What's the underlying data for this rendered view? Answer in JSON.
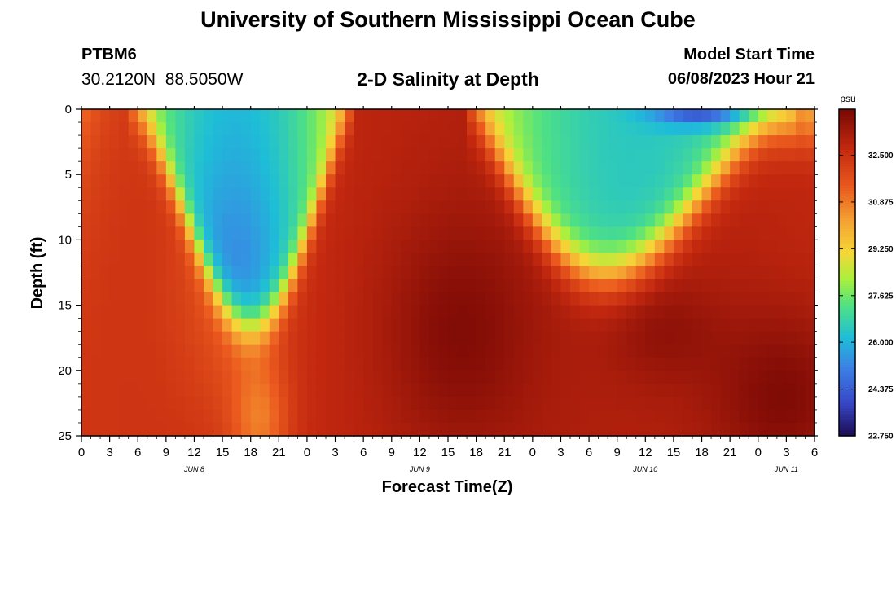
{
  "header": {
    "title": "University of Southern Mississippi Ocean Cube",
    "station_id": "PTBM6",
    "coordinates": "30.2120N  88.5050W",
    "model_start_label": "Model Start Time",
    "model_start_value": "06/08/2023 Hour 21"
  },
  "footer": {
    "title": "University of Southern Mississippi Ocean Cube"
  },
  "chart_data": {
    "type": "heatmap",
    "title": "2-D Salinity at Depth",
    "xlabel": "Forecast Time(Z)",
    "ylabel": "Depth (ft)",
    "colorbar_label": "psu",
    "x_range_hours": [
      0,
      78
    ],
    "y_range_ft": [
      0,
      25
    ],
    "x_tick_labels": [
      "0",
      "3",
      "6",
      "9",
      "12",
      "15",
      "18",
      "21",
      "0",
      "3",
      "6",
      "9",
      "12",
      "15",
      "18",
      "21",
      "0",
      "3",
      "6",
      "9",
      "12",
      "15",
      "18",
      "21",
      "0",
      "3",
      "6"
    ],
    "y_ticks": [
      0,
      5,
      10,
      15,
      20,
      25
    ],
    "date_labels": [
      {
        "text": "JUN 8",
        "hour": 12
      },
      {
        "text": "JUN 9",
        "hour": 36
      },
      {
        "text": "JUN 10",
        "hour": 60
      },
      {
        "text": "JUN 11",
        "hour": 75
      }
    ],
    "colorbar_ticks": [
      "32.500",
      "30.875",
      "29.250",
      "27.625",
      "26.000",
      "24.375",
      "22.750"
    ],
    "value_range": [
      22.75,
      34.1
    ],
    "surface_low_minimum": 22.9,
    "note": "Fresh (low-salinity) water masses reach ~16 ft depth near hour 17 and ~12 ft near hour 53; saline water (~33-34 psu) dominates deeper layers."
  }
}
